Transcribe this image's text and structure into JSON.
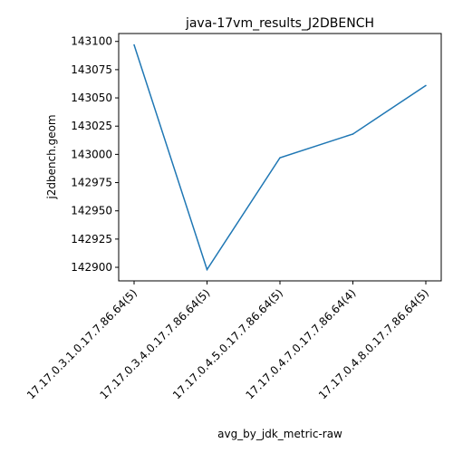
{
  "chart_data": {
    "type": "line",
    "title": "java-17vm_results_J2DBENCH",
    "xlabel": "avg_by_jdk_metric-raw",
    "ylabel": "j2dbench.geom",
    "categories": [
      "17.17.0.3.1.0.17.7.86.64(5)",
      "17.17.0.3.4.0.17.7.86.64(5)",
      "17.17.0.4.5.0.17.7.86.64(5)",
      "17.17.0.4.7.0.17.7.86.64(4)",
      "17.17.0.4.8.0.17.7.86.64(5)"
    ],
    "series": [
      {
        "values": [
          143097,
          142898,
          142997,
          143018,
          143061
        ],
        "color": "#1f77b4"
      }
    ],
    "yticks": [
      142900,
      142925,
      142950,
      142975,
      143000,
      143025,
      143050,
      143075,
      143100
    ],
    "ylim": [
      142888,
      143107
    ],
    "grid": false,
    "legend": "none"
  }
}
